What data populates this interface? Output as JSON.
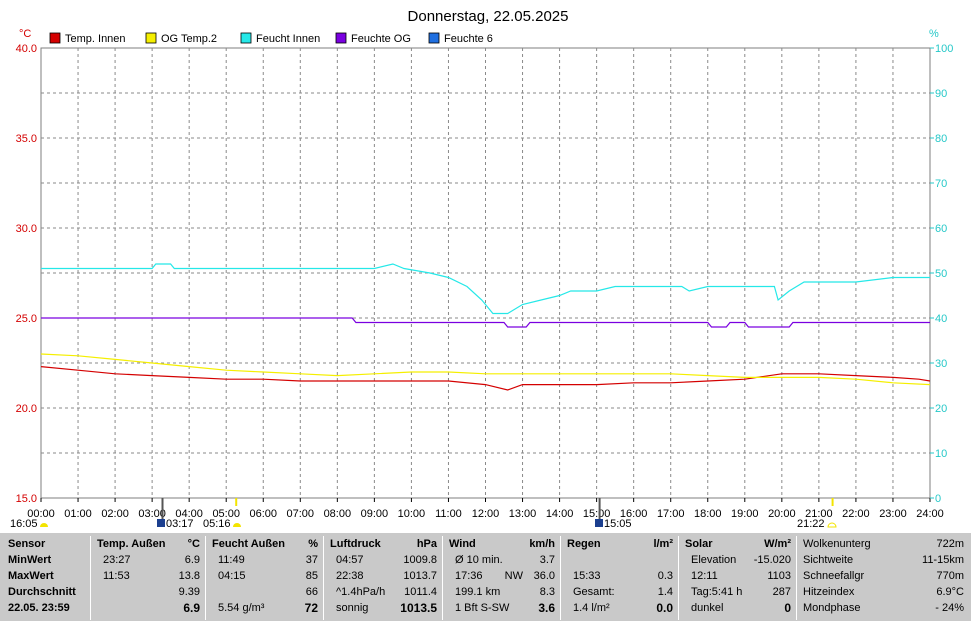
{
  "title": "Donnerstag, 22.05.2025",
  "units": {
    "left": "°C",
    "right": "%"
  },
  "legend": [
    {
      "label": "Temp. Innen",
      "color": "#d40000"
    },
    {
      "label": "OG Temp.2",
      "color": "#f5ef00"
    },
    {
      "label": "Feucht Innen",
      "color": "#25e8e8"
    },
    {
      "label": "Feuchte OG",
      "color": "#7a00e0"
    },
    {
      "label": "Feuchte 6",
      "color": "#1f6fe0"
    }
  ],
  "markers": {
    "sunrise": "16:05",
    "m1": "03:17",
    "m2": "05:16",
    "m3": "15:05",
    "sunset": "21:22"
  },
  "chart_data": {
    "type": "line",
    "title": "Donnerstag, 22.05.2025",
    "x_ticks": [
      "00:00",
      "01:00",
      "02:00",
      "03:00",
      "04:00",
      "05:00",
      "06:00",
      "07:00",
      "08:00",
      "09:00",
      "10:00",
      "11:00",
      "12:00",
      "13:00",
      "14:00",
      "15:00",
      "16:00",
      "17:00",
      "18:00",
      "19:00",
      "20:00",
      "21:00",
      "22:00",
      "23:00",
      "24:00"
    ],
    "y_left_ticks": [
      "40.0",
      "35.0",
      "30.0",
      "25.0",
      "20.0",
      "15.0"
    ],
    "y_right_ticks": [
      "100",
      "90",
      "80",
      "70",
      "60",
      "50",
      "40",
      "30",
      "20",
      "10",
      "0"
    ],
    "y_left_lim": [
      15,
      40
    ],
    "y_right_lim": [
      0,
      100
    ],
    "grid": true,
    "series": [
      {
        "name": "Temp. Innen",
        "axis": "left",
        "color": "#d40000",
        "points": [
          [
            0,
            22.3
          ],
          [
            1,
            22.1
          ],
          [
            2,
            21.9
          ],
          [
            3,
            21.8
          ],
          [
            4,
            21.7
          ],
          [
            5,
            21.6
          ],
          [
            6,
            21.6
          ],
          [
            7,
            21.5
          ],
          [
            8,
            21.5
          ],
          [
            9,
            21.5
          ],
          [
            10,
            21.5
          ],
          [
            11,
            21.5
          ],
          [
            12,
            21.3
          ],
          [
            12.6,
            21.0
          ],
          [
            13,
            21.3
          ],
          [
            14,
            21.3
          ],
          [
            15,
            21.3
          ],
          [
            16,
            21.4
          ],
          [
            17,
            21.4
          ],
          [
            18,
            21.5
          ],
          [
            19,
            21.6
          ],
          [
            20,
            21.9
          ],
          [
            21,
            21.9
          ],
          [
            22,
            21.8
          ],
          [
            23,
            21.7
          ],
          [
            23.7,
            21.6
          ],
          [
            24,
            21.5
          ]
        ]
      },
      {
        "name": "OG Temp.2",
        "axis": "left",
        "color": "#f5ef00",
        "points": [
          [
            0,
            23.0
          ],
          [
            1,
            22.9
          ],
          [
            2,
            22.7
          ],
          [
            3,
            22.5
          ],
          [
            4,
            22.3
          ],
          [
            5,
            22.1
          ],
          [
            6,
            22.0
          ],
          [
            7,
            21.9
          ],
          [
            8,
            21.8
          ],
          [
            9,
            21.9
          ],
          [
            10,
            22.0
          ],
          [
            11,
            22.0
          ],
          [
            12,
            21.9
          ],
          [
            13,
            21.9
          ],
          [
            14,
            21.9
          ],
          [
            15,
            21.9
          ],
          [
            16,
            21.9
          ],
          [
            17,
            21.9
          ],
          [
            18,
            21.8
          ],
          [
            19,
            21.7
          ],
          [
            20,
            21.7
          ],
          [
            21,
            21.7
          ],
          [
            22,
            21.6
          ],
          [
            23,
            21.4
          ],
          [
            24,
            21.3
          ]
        ]
      },
      {
        "name": "Feucht Innen",
        "axis": "right",
        "color": "#25e8e8",
        "points": [
          [
            0,
            51
          ],
          [
            3,
            51
          ],
          [
            3.1,
            52
          ],
          [
            3.5,
            52
          ],
          [
            3.6,
            51
          ],
          [
            9,
            51
          ],
          [
            9.5,
            52
          ],
          [
            9.8,
            51
          ],
          [
            10.5,
            50
          ],
          [
            11,
            49
          ],
          [
            11.5,
            47
          ],
          [
            11.9,
            44
          ],
          [
            12.2,
            41
          ],
          [
            12.6,
            41
          ],
          [
            13,
            43
          ],
          [
            13.5,
            44
          ],
          [
            14,
            45
          ],
          [
            14.3,
            46
          ],
          [
            15,
            46
          ],
          [
            15.5,
            47
          ],
          [
            16.5,
            47
          ],
          [
            17.3,
            47
          ],
          [
            17.5,
            46
          ],
          [
            18,
            47
          ],
          [
            19.8,
            47
          ],
          [
            19.9,
            44
          ],
          [
            20.2,
            46
          ],
          [
            20.6,
            48
          ],
          [
            21,
            48
          ],
          [
            22,
            48
          ],
          [
            23,
            49
          ],
          [
            24,
            49
          ]
        ]
      },
      {
        "name": "Feuchte OG",
        "axis": "right",
        "color": "#7a00e0",
        "points": [
          [
            0,
            40
          ],
          [
            8.4,
            40
          ],
          [
            8.5,
            39
          ],
          [
            12.5,
            39
          ],
          [
            12.6,
            38
          ],
          [
            13.1,
            38
          ],
          [
            13.2,
            39
          ],
          [
            18,
            39
          ],
          [
            18.1,
            38
          ],
          [
            18.5,
            38
          ],
          [
            18.6,
            39
          ],
          [
            19,
            39
          ],
          [
            19.1,
            38
          ],
          [
            20.2,
            38
          ],
          [
            20.3,
            39
          ],
          [
            24,
            39
          ]
        ]
      },
      {
        "name": "Feuchte 6",
        "axis": "right",
        "color": "#1f6fe0",
        "points": []
      }
    ]
  },
  "stats": [
    {
      "head": [
        "Sensor",
        "",
        ""
      ],
      "rows": [
        [
          "MinWert",
          "",
          ""
        ],
        [
          "MaxWert",
          "",
          ""
        ],
        [
          "Durchschnitt",
          "",
          ""
        ],
        [
          "22.05. 23:59",
          "",
          ""
        ]
      ],
      "bold_rows": [
        0,
        1,
        2,
        3
      ]
    },
    {
      "head": [
        "Temp. Außen",
        "°C",
        ""
      ],
      "rows": [
        [
          "23:27",
          "6.9",
          ""
        ],
        [
          "11:53",
          "13.8",
          ""
        ],
        [
          "",
          "9.39",
          ""
        ],
        [
          "",
          "6.9",
          ""
        ]
      ]
    },
    {
      "head": [
        "Feucht Außen",
        "%",
        ""
      ],
      "rows": [
        [
          "11:49",
          "37",
          ""
        ],
        [
          "04:15",
          "85",
          ""
        ],
        [
          "",
          "66",
          ""
        ],
        [
          "5.54 g/m³",
          "72",
          ""
        ]
      ]
    },
    {
      "head": [
        "Luftdruck",
        "hPa",
        ""
      ],
      "rows": [
        [
          "04:57",
          "1009.8",
          ""
        ],
        [
          "22:38",
          "1013.7",
          ""
        ],
        [
          "^1.4hPa/h",
          "1011.4",
          ""
        ],
        [
          "sonnig",
          "1013.5",
          ""
        ]
      ]
    },
    {
      "head": [
        "Wind",
        "km/h",
        ""
      ],
      "rows": [
        [
          "Ø 10 min.",
          "3.7",
          ""
        ],
        [
          "17:36",
          "36.0",
          "NW"
        ],
        [
          "199.1 km",
          "8.3",
          ""
        ],
        [
          "1 Bft S-SW",
          "3.6",
          ""
        ]
      ]
    },
    {
      "head": [
        "Regen",
        "l/m²",
        ""
      ],
      "rows": [
        [
          "",
          "",
          ""
        ],
        [
          "15:33",
          "0.3",
          ""
        ],
        [
          "Gesamt:",
          "1.4",
          ""
        ],
        [
          "1.4 l/m²",
          "0.0",
          ""
        ]
      ]
    },
    {
      "head": [
        "Solar",
        "W/m²",
        ""
      ],
      "rows": [
        [
          "Elevation",
          "-15.020",
          ""
        ],
        [
          "12:11",
          "1103",
          ""
        ],
        [
          "Tag:5:41 h",
          "287",
          ""
        ],
        [
          "dunkel",
          "0",
          ""
        ]
      ]
    },
    {
      "head": [
        "Wolkenunterg",
        "722m",
        ""
      ],
      "rows": [
        [
          "Sichtweite",
          "11-15km",
          ""
        ],
        [
          "Schneefallgr",
          "770m",
          ""
        ],
        [
          "Hitzeindex",
          "6.9°C",
          ""
        ],
        [
          "Mondphase",
          "- 24%",
          ""
        ]
      ]
    }
  ]
}
